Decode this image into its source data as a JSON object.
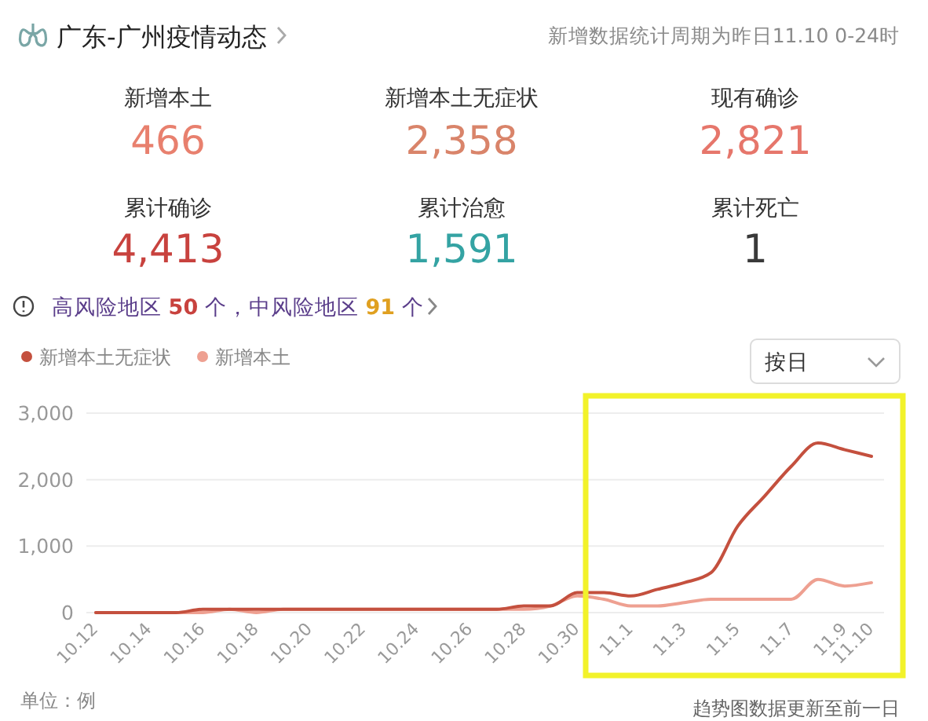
{
  "chart_data": [
    {
      "type": "other",
      "title": "广东-广州疫情动态",
      "subtitle": "新增数据统计周期为昨日11.10 0-24时",
      "categories": [
        "新增本土",
        "新增本土无症状",
        "现有确诊",
        "累计确诊",
        "累计治愈",
        "累计死亡"
      ],
      "value_labels": [
        "466",
        "2,358",
        "2,821",
        "4,413",
        "1,591",
        "1"
      ],
      "colors": [
        "#e8806e",
        "#d9846a",
        "#e6766b",
        "#c8423e",
        "#34a3a3",
        "#3a3a3a"
      ],
      "annotations": [
        "高风险地区 50 个，中风险地区 91 个"
      ]
    },
    {
      "type": "line",
      "categories": [
        "10.12",
        null,
        "10.14",
        null,
        "10.16",
        null,
        "10.18",
        null,
        "10.20",
        null,
        "10.22",
        null,
        "10.24",
        null,
        "10.26",
        null,
        "10.28",
        null,
        "10.30",
        null,
        "11.1",
        null,
        "11.3",
        null,
        "11.5",
        null,
        "11.7",
        null,
        "11.9",
        "11.10"
      ],
      "series": [
        {
          "name": "新增本土无症状",
          "color": "#c4503e",
          "values": [
            0,
            0,
            0,
            0,
            50,
            50,
            50,
            50,
            50,
            50,
            50,
            50,
            50,
            50,
            50,
            50,
            100,
            100,
            300,
            300,
            250,
            350,
            450,
            600,
            1300,
            1750,
            2200,
            2550,
            2450,
            2350
          ]
        },
        {
          "name": "新增本土",
          "color": "#eea091",
          "values": [
            0,
            0,
            0,
            0,
            0,
            50,
            0,
            50,
            50,
            50,
            50,
            50,
            50,
            50,
            50,
            50,
            50,
            100,
            250,
            200,
            100,
            100,
            150,
            200,
            200,
            200,
            200,
            500,
            400,
            450
          ]
        }
      ],
      "ylim": [
        0,
        3000
      ],
      "yticks": [
        0,
        {
          "value": 1000,
          "label": "1,000"
        },
        {
          "value": 2000,
          "label": "2,000"
        },
        {
          "value": 3000,
          "label": "3,000"
        }
      ],
      "grid": "y",
      "legend": "top left",
      "annotations": [
        "按日",
        "单位：例",
        "趋势图数据更新至前一日"
      ]
    }
  ]
}
